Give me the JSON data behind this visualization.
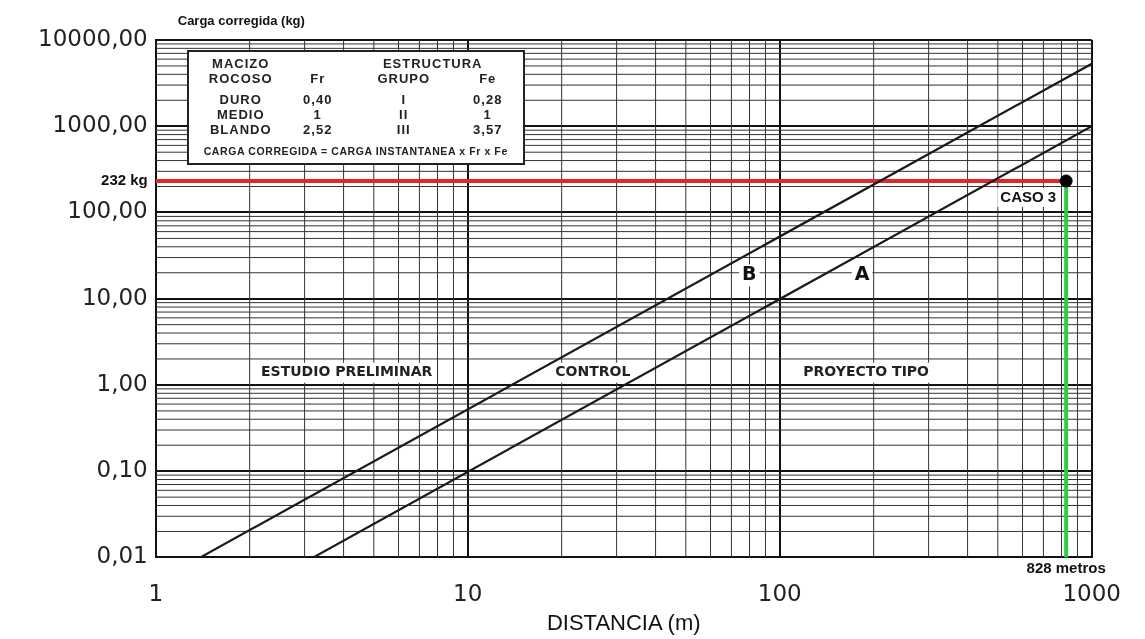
{
  "chart_data": {
    "type": "line",
    "xlabel": "DISTANCIA (m)",
    "ylabel": "Carga corregida (kg)",
    "log": "xy",
    "grid": true,
    "xlim": [
      1,
      1000
    ],
    "xticks": [
      1,
      10,
      100,
      1000
    ],
    "ylim": [
      0.01,
      10000
    ],
    "yticks": [
      {
        "value": 0.01,
        "label": "0,01"
      },
      {
        "value": 0.1,
        "label": "0,10"
      },
      {
        "value": 1,
        "label": "1,00"
      },
      {
        "value": 10,
        "label": "10,00"
      },
      {
        "value": 100,
        "label": "100,00"
      },
      {
        "value": 1000,
        "label": "1000,00"
      },
      {
        "value": 10000,
        "label": "10000,00"
      }
    ],
    "series": [
      {
        "name": "B",
        "color": "#1a1a1a",
        "x": [
          1.39,
          1000
        ],
        "values": [
          0.01,
          5300
        ]
      },
      {
        "name": "A",
        "color": "#1a1a1a",
        "x": [
          3.2,
          1000
        ],
        "values": [
          0.01,
          1000
        ]
      },
      {
        "name": "CASO 3",
        "type": "scatter",
        "color": "#000000",
        "x": [
          828
        ],
        "values": [
          232
        ],
        "marker": "circle"
      }
    ],
    "ref_lines": [
      {
        "axis": "y",
        "value": 232,
        "label": "232 kg",
        "color": "#e32626"
      },
      {
        "axis": "x",
        "value": 828,
        "label": "828 metros",
        "color": "#2ecc40"
      }
    ],
    "annotations": [
      "MACIZO",
      "ESTRUCTURA",
      "ROCOSO",
      "Fr",
      "GRUPO",
      "Fe",
      "DURO",
      "0,40",
      "I",
      "0,28",
      "MEDIO",
      "1",
      "II",
      "1",
      "BLANDO",
      "2,52",
      "III",
      "3,57",
      "CARGA CORREGIDA = CARGA INSTANTANEA x Fr x Fe",
      "ESTUDIO PRELIMINAR",
      "CONTROL",
      "PROYECTO TIPO"
    ]
  }
}
